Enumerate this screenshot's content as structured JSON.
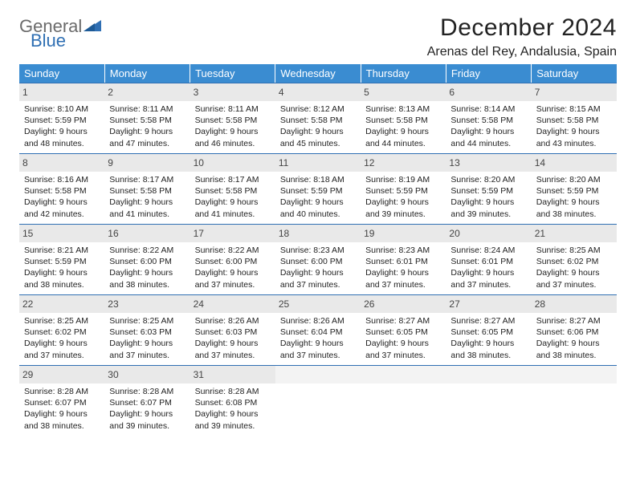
{
  "logo": {
    "text1": "General",
    "text2": "Blue",
    "color_gray": "#6b6b6b",
    "color_blue": "#2f6fb3"
  },
  "title": "December 2024",
  "location": "Arenas del Rey, Andalusia, Spain",
  "header_bg": "#3a8cd1",
  "header_fg": "#ffffff",
  "daynum_bg": "#e9e9e9",
  "daynum_border": "#2f6fb3",
  "empty_bg": "#f3f3f3",
  "columns": [
    "Sunday",
    "Monday",
    "Tuesday",
    "Wednesday",
    "Thursday",
    "Friday",
    "Saturday"
  ],
  "weeks": [
    [
      {
        "n": "1",
        "sr": "8:10 AM",
        "ss": "5:59 PM",
        "dl": "9 hours and 48 minutes."
      },
      {
        "n": "2",
        "sr": "8:11 AM",
        "ss": "5:58 PM",
        "dl": "9 hours and 47 minutes."
      },
      {
        "n": "3",
        "sr": "8:11 AM",
        "ss": "5:58 PM",
        "dl": "9 hours and 46 minutes."
      },
      {
        "n": "4",
        "sr": "8:12 AM",
        "ss": "5:58 PM",
        "dl": "9 hours and 45 minutes."
      },
      {
        "n": "5",
        "sr": "8:13 AM",
        "ss": "5:58 PM",
        "dl": "9 hours and 44 minutes."
      },
      {
        "n": "6",
        "sr": "8:14 AM",
        "ss": "5:58 PM",
        "dl": "9 hours and 44 minutes."
      },
      {
        "n": "7",
        "sr": "8:15 AM",
        "ss": "5:58 PM",
        "dl": "9 hours and 43 minutes."
      }
    ],
    [
      {
        "n": "8",
        "sr": "8:16 AM",
        "ss": "5:58 PM",
        "dl": "9 hours and 42 minutes."
      },
      {
        "n": "9",
        "sr": "8:17 AM",
        "ss": "5:58 PM",
        "dl": "9 hours and 41 minutes."
      },
      {
        "n": "10",
        "sr": "8:17 AM",
        "ss": "5:58 PM",
        "dl": "9 hours and 41 minutes."
      },
      {
        "n": "11",
        "sr": "8:18 AM",
        "ss": "5:59 PM",
        "dl": "9 hours and 40 minutes."
      },
      {
        "n": "12",
        "sr": "8:19 AM",
        "ss": "5:59 PM",
        "dl": "9 hours and 39 minutes."
      },
      {
        "n": "13",
        "sr": "8:20 AM",
        "ss": "5:59 PM",
        "dl": "9 hours and 39 minutes."
      },
      {
        "n": "14",
        "sr": "8:20 AM",
        "ss": "5:59 PM",
        "dl": "9 hours and 38 minutes."
      }
    ],
    [
      {
        "n": "15",
        "sr": "8:21 AM",
        "ss": "5:59 PM",
        "dl": "9 hours and 38 minutes."
      },
      {
        "n": "16",
        "sr": "8:22 AM",
        "ss": "6:00 PM",
        "dl": "9 hours and 38 minutes."
      },
      {
        "n": "17",
        "sr": "8:22 AM",
        "ss": "6:00 PM",
        "dl": "9 hours and 37 minutes."
      },
      {
        "n": "18",
        "sr": "8:23 AM",
        "ss": "6:00 PM",
        "dl": "9 hours and 37 minutes."
      },
      {
        "n": "19",
        "sr": "8:23 AM",
        "ss": "6:01 PM",
        "dl": "9 hours and 37 minutes."
      },
      {
        "n": "20",
        "sr": "8:24 AM",
        "ss": "6:01 PM",
        "dl": "9 hours and 37 minutes."
      },
      {
        "n": "21",
        "sr": "8:25 AM",
        "ss": "6:02 PM",
        "dl": "9 hours and 37 minutes."
      }
    ],
    [
      {
        "n": "22",
        "sr": "8:25 AM",
        "ss": "6:02 PM",
        "dl": "9 hours and 37 minutes."
      },
      {
        "n": "23",
        "sr": "8:25 AM",
        "ss": "6:03 PM",
        "dl": "9 hours and 37 minutes."
      },
      {
        "n": "24",
        "sr": "8:26 AM",
        "ss": "6:03 PM",
        "dl": "9 hours and 37 minutes."
      },
      {
        "n": "25",
        "sr": "8:26 AM",
        "ss": "6:04 PM",
        "dl": "9 hours and 37 minutes."
      },
      {
        "n": "26",
        "sr": "8:27 AM",
        "ss": "6:05 PM",
        "dl": "9 hours and 37 minutes."
      },
      {
        "n": "27",
        "sr": "8:27 AM",
        "ss": "6:05 PM",
        "dl": "9 hours and 38 minutes."
      },
      {
        "n": "28",
        "sr": "8:27 AM",
        "ss": "6:06 PM",
        "dl": "9 hours and 38 minutes."
      }
    ],
    [
      {
        "n": "29",
        "sr": "8:28 AM",
        "ss": "6:07 PM",
        "dl": "9 hours and 38 minutes."
      },
      {
        "n": "30",
        "sr": "8:28 AM",
        "ss": "6:07 PM",
        "dl": "9 hours and 39 minutes."
      },
      {
        "n": "31",
        "sr": "8:28 AM",
        "ss": "6:08 PM",
        "dl": "9 hours and 39 minutes."
      },
      null,
      null,
      null,
      null
    ]
  ],
  "labels": {
    "sunrise": "Sunrise: ",
    "sunset": "Sunset: ",
    "daylight": "Daylight: "
  }
}
